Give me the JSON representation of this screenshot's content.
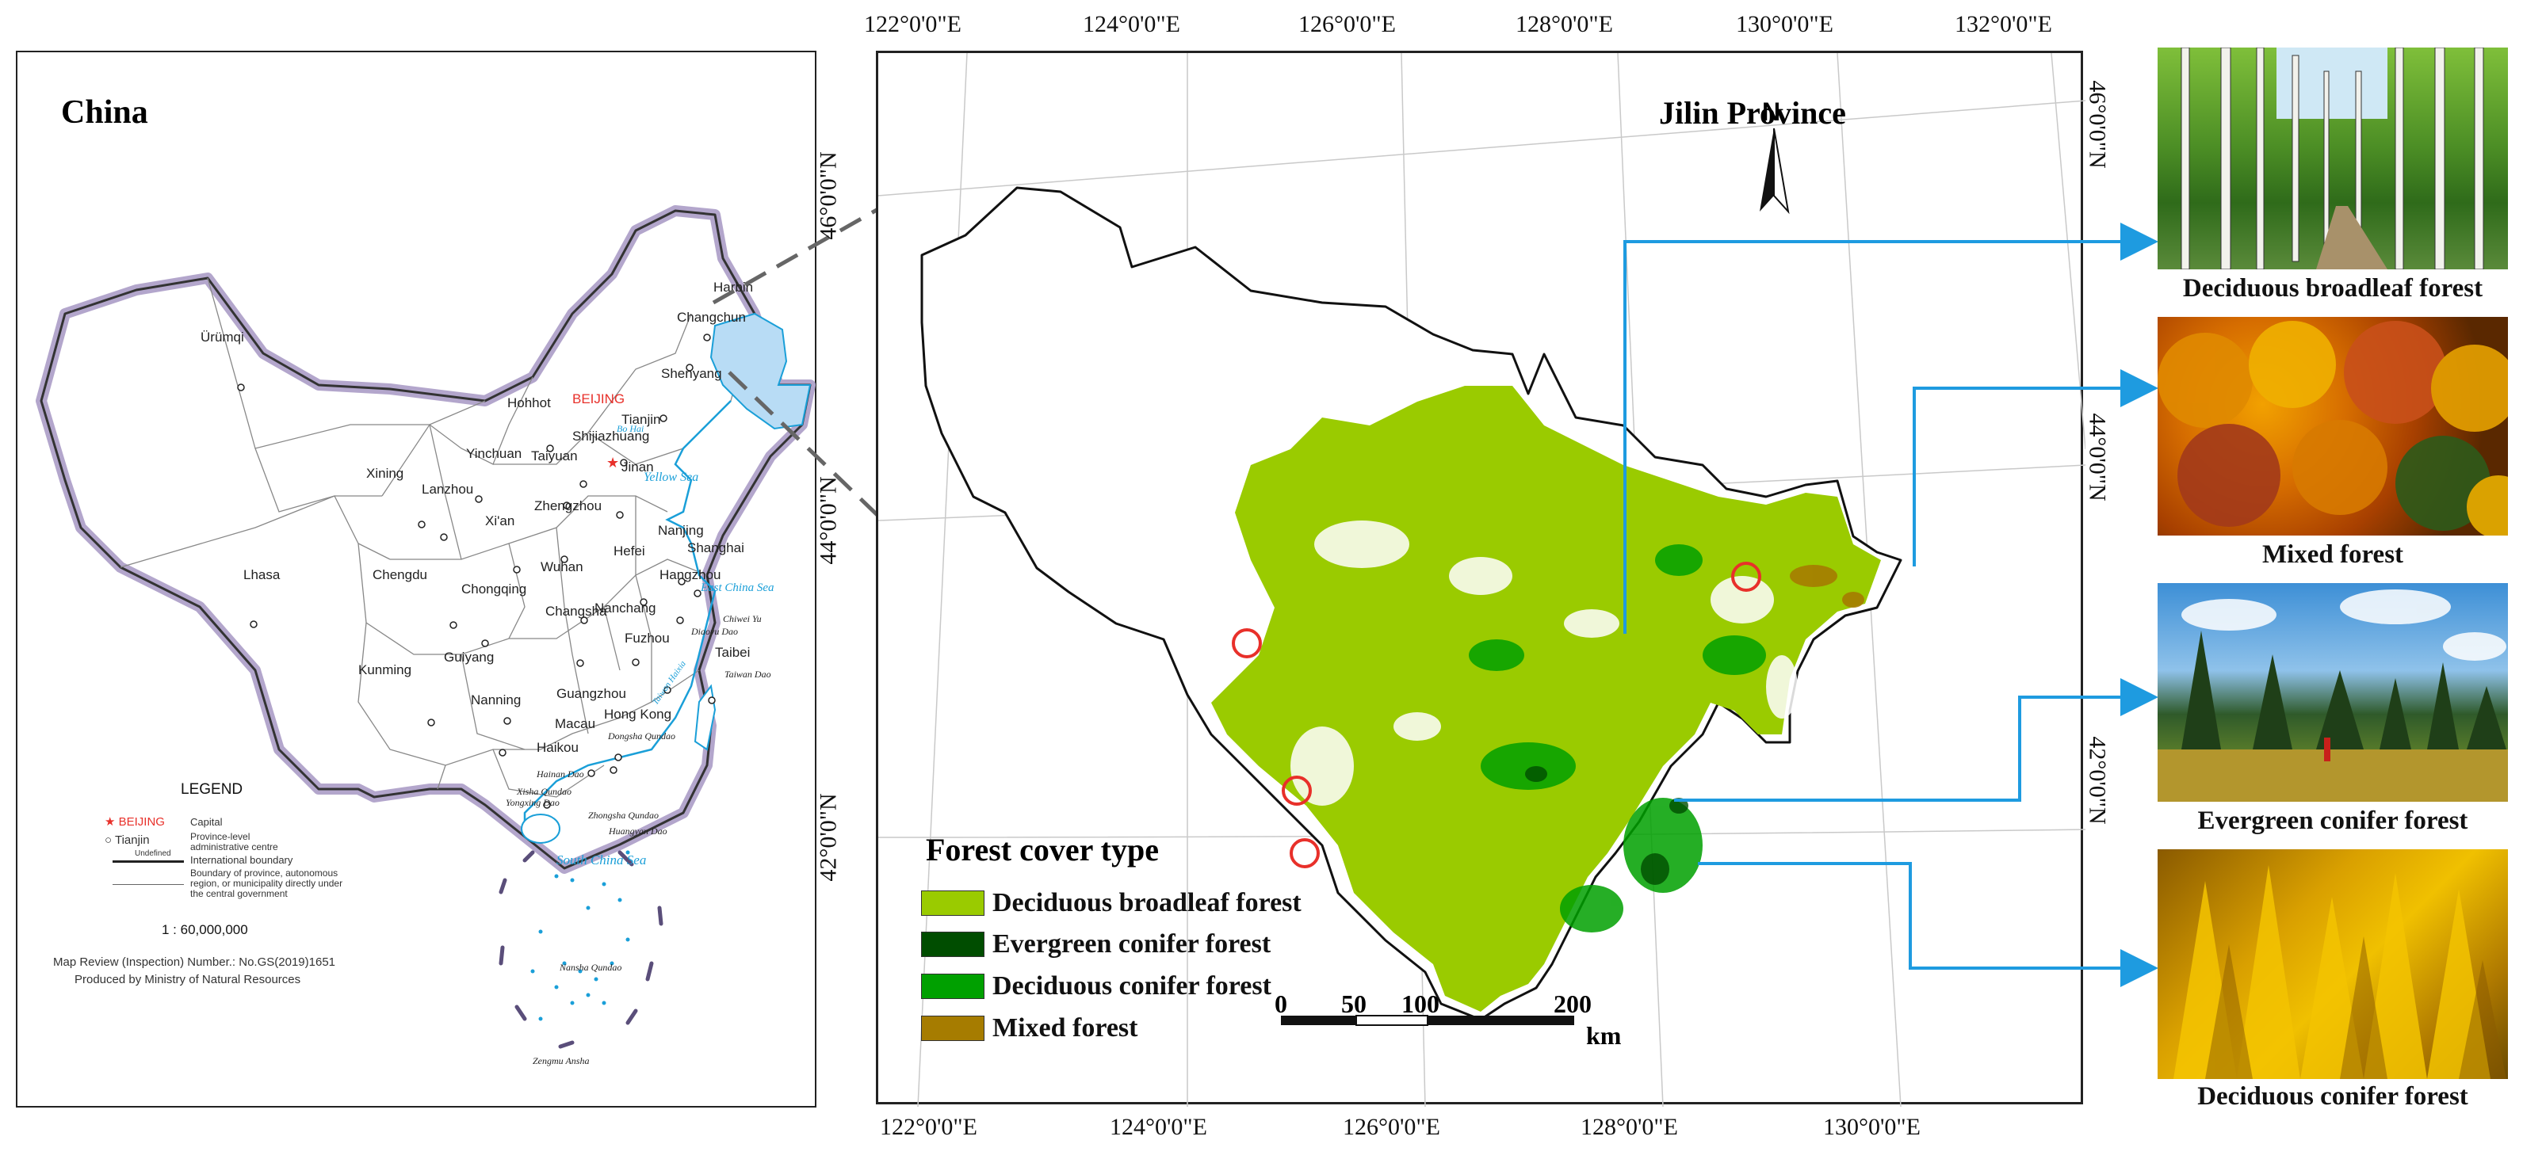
{
  "china_map": {
    "title": "China",
    "cities": {
      "harbin": "Harbin",
      "changchun": "Changchun",
      "urumqi": "Ürümqi",
      "shenyang": "Shenyang",
      "hohhot": "Hohhot",
      "beijing": "BEIJING",
      "tianjin": "Tianjin",
      "yinchuan": "Yinchuan",
      "taiyuan": "Taiyuan",
      "shijiazhuang": "Shijiazhuang",
      "xining": "Xining",
      "lanzhou": "Lanzhou",
      "jinan": "Jinan",
      "xian": "Xi'an",
      "zhengzhou": "Zhengzhou",
      "nanjing": "Nanjing",
      "shanghai": "Shanghai",
      "hefei": "Hefei",
      "lhasa": "Lhasa",
      "chengdu": "Chengdu",
      "wuhan": "Wuhan",
      "hangzhou": "Hangzhou",
      "chongqing": "Chongqing",
      "changsha": "Changsha",
      "nanchang": "Nanchang",
      "fuzhou": "Fuzhou",
      "taibei": "Taibei",
      "kunming": "Kunming",
      "guiyang": "Guiyang",
      "nanning": "Nanning",
      "guangzhou": "Guangzhou",
      "hongkong": "Hong Kong",
      "macau": "Macau",
      "haikou": "Haikou"
    },
    "seas": {
      "bohai": "Bo Hai",
      "yellow_sea": "Yellow Sea",
      "east_china_sea": "East China Sea",
      "south_china_sea": "South  China  Sea",
      "taiwan_strait": "Taiwan Haixia"
    },
    "islands": {
      "chiwei": "Chiwei Yu",
      "diaoyu": "Diaoyu Dao",
      "taiwan": "Taiwan Dao",
      "dongsha": "Dongsha Qundao",
      "hainan": "Hainan Dao",
      "xisha": "Xisha Qundao",
      "yongxing": "Yongxing Dao",
      "zhongsha": "Zhongsha Qundao",
      "huangyan": "Huangyan Dao",
      "nansha": "Nansha Qundao",
      "zengmu": "Zengmu Ansha"
    },
    "legend": {
      "title": "LEGEND",
      "capital_symbol": "BEIJING",
      "capital_desc": "Capital",
      "provincial_symbol": "Tianjin",
      "provincial_desc": "Province-level administrative centre",
      "undefined_label": "Undefined",
      "intl_boundary": "International boundary",
      "province_boundary": "Boundary of province, autonomous region, or municipality directly under the central government",
      "scale": "1 : 60,000,000",
      "review_number": "Map Review (Inspection) Number.: No.GS(2019)1651",
      "producer": "Produced by Ministry of Natural Resources"
    }
  },
  "jilin_map": {
    "title": "Jilin Province",
    "north_label": "N",
    "top_longitudes": [
      "122°0'0\"E",
      "124°0'0\"E",
      "126°0'0\"E",
      "128°0'0\"E",
      "130°0'0\"E",
      "132°0'0\"E"
    ],
    "bottom_longitudes": [
      "122°0'0\"E",
      "124°0'0\"E",
      "126°0'0\"E",
      "128°0'0\"E",
      "130°0'0\"E"
    ],
    "left_latitudes": [
      "46°0'0\"N",
      "44°0'0\"N",
      "42°0'0\"N"
    ],
    "right_latitudes": [
      "46°0'0\"N",
      "44°0'0\"N",
      "42°0'0\"N"
    ],
    "scale_ticks": [
      "0",
      "50",
      "100",
      "200"
    ],
    "scale_unit": "km",
    "legend": {
      "title": "Forest cover type",
      "items": [
        {
          "label": "Deciduous broadleaf forest",
          "color": "#9acb00"
        },
        {
          "label": "Evergreen conifer forest",
          "color": "#004d00"
        },
        {
          "label": "Deciduous conifer forest",
          "color": "#00a000"
        },
        {
          "label": "Mixed forest",
          "color": "#a67c00"
        }
      ]
    }
  },
  "photos": [
    {
      "label": "Deciduous broadleaf forest"
    },
    {
      "label": "Mixed forest"
    },
    {
      "label": "Evergreen conifer forest"
    },
    {
      "label": "Deciduous conifer forest"
    }
  ],
  "colors": {
    "leader_blue": "#1e9be0",
    "marker_red": "#e8302a",
    "sea_blue": "#1a9fd8",
    "highlight": "#b8dcf5"
  }
}
